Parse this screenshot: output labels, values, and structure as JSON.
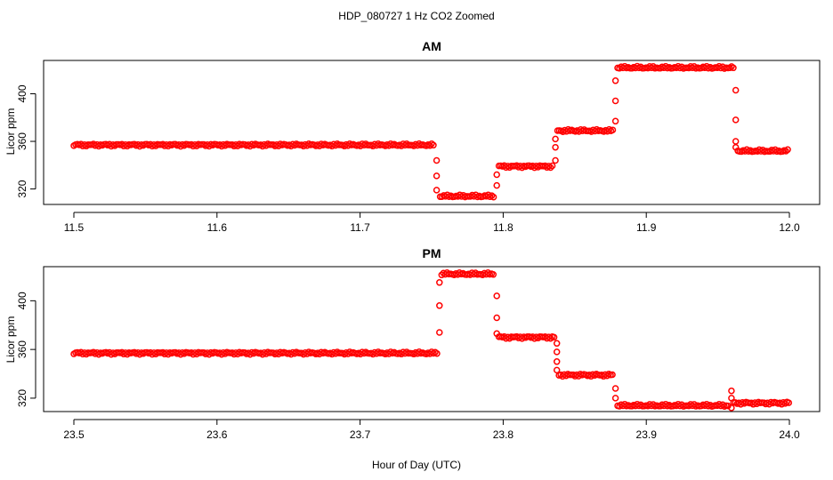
{
  "chart_data": {
    "title": "HDP_080727  1 Hz CO2 Zoomed",
    "xlabel": "Hour of Day (UTC)",
    "marker_color": "#ff0000",
    "panels": [
      {
        "type": "scatter",
        "title": "AM",
        "ylabel": "Licor ppm",
        "xlim": [
          11.5,
          12.0
        ],
        "ylim": [
          307,
          428
        ],
        "xticks": [
          "11.5",
          "11.6",
          "11.7",
          "11.8",
          "11.9",
          "12.0"
        ],
        "yticks": [
          "320",
          "360",
          "400"
        ],
        "segments": [
          {
            "x0": 11.5,
            "x1": 11.752,
            "y": 357
          },
          {
            "x0": 11.756,
            "x1": 11.794,
            "y": 314
          },
          {
            "x0": 11.797,
            "x1": 11.835,
            "y": 339
          },
          {
            "x0": 11.838,
            "x1": 11.877,
            "y": 369
          },
          {
            "x0": 11.88,
            "x1": 11.961,
            "y": 422
          },
          {
            "x0": 11.964,
            "x1": 12.0,
            "y": 352
          }
        ],
        "transitions": [
          {
            "x": 11.7535,
            "values": [
              344,
              331,
              319
            ]
          },
          {
            "x": 11.7955,
            "values": [
              323,
              332
            ]
          },
          {
            "x": 11.8365,
            "values": [
              344,
              355,
              362
            ]
          },
          {
            "x": 11.8785,
            "values": [
              377,
              394,
              411
            ]
          },
          {
            "x": 11.9625,
            "values": [
              403,
              378,
              360,
              355
            ]
          }
        ]
      },
      {
        "type": "scatter",
        "title": "PM",
        "ylabel": "Licor ppm",
        "xlim": [
          23.5,
          24.0
        ],
        "ylim": [
          309,
          428
        ],
        "xticks": [
          "23.5",
          "23.6",
          "23.7",
          "23.8",
          "23.9",
          "24.0"
        ],
        "yticks": [
          "320",
          "360",
          "400"
        ],
        "segments": [
          {
            "x0": 23.5,
            "x1": 23.754,
            "y": 357
          },
          {
            "x0": 23.757,
            "x1": 23.794,
            "y": 422
          },
          {
            "x0": 23.797,
            "x1": 23.836,
            "y": 370
          },
          {
            "x0": 23.839,
            "x1": 23.877,
            "y": 339
          },
          {
            "x0": 23.88,
            "x1": 23.958,
            "y": 314
          },
          {
            "x0": 23.961,
            "x1": 24.0,
            "y": 316
          }
        ],
        "transitions": [
          {
            "x": 23.7555,
            "values": [
              374,
              396,
              415
            ]
          },
          {
            "x": 23.7955,
            "values": [
              404,
              386,
              373
            ]
          },
          {
            "x": 23.8375,
            "values": [
              365,
              358,
              350,
              343
            ]
          },
          {
            "x": 23.8785,
            "values": [
              328,
              320
            ]
          },
          {
            "x": 23.9595,
            "values": [
              326,
              312,
              320
            ]
          }
        ]
      }
    ]
  }
}
